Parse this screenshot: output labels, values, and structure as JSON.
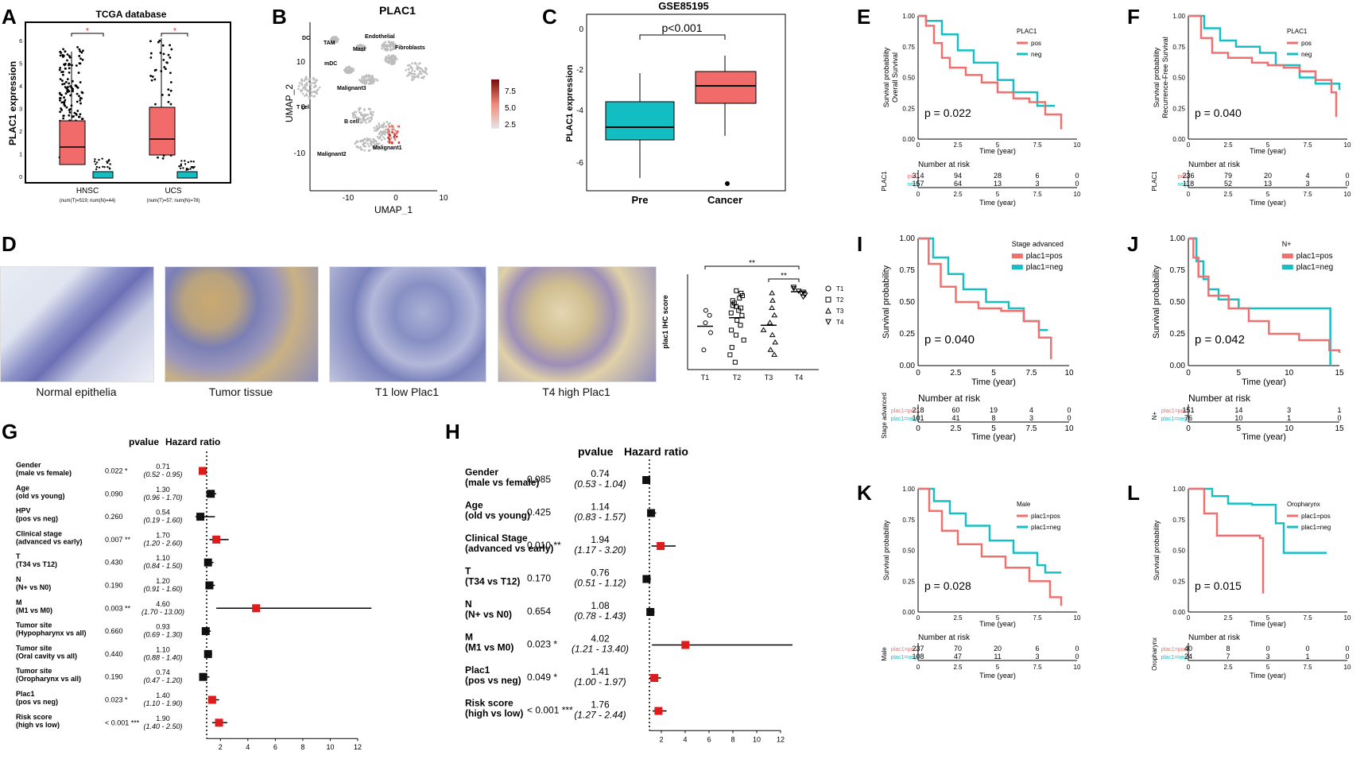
{
  "figure": {
    "panel_labels": [
      "A",
      "B",
      "C",
      "D",
      "E",
      "F",
      "G",
      "H",
      "I",
      "J",
      "K",
      "L"
    ],
    "colors": {
      "pos": "#f07070",
      "neg": "#17bfc4",
      "box_red": "#f26b6b",
      "box_teal": "#13bec2",
      "forest_red": "#e01b1b",
      "forest_black": "#111111"
    }
  },
  "panelA": {
    "title": "TCGA database",
    "ylabel": "PLAC1 expression",
    "groups": [
      {
        "name": "HNSC",
        "note": "(num(T)=519; num(N)=44)"
      },
      {
        "name": "UCS",
        "note": "(num(T)=57; num(N)=78)"
      }
    ],
    "yticks": [
      "0",
      "1",
      "2",
      "3",
      "4",
      "5",
      "6"
    ],
    "sig_marks": [
      "*",
      "*"
    ]
  },
  "panelB": {
    "title": "PLAC1",
    "xlabel": "UMAP_1",
    "ylabel": "UMAP_2",
    "xticks": [
      "-10",
      "0",
      "10"
    ],
    "yticks": [
      "10",
      "0",
      "-10"
    ],
    "clusters": [
      "DC",
      "TAM",
      "Endothelial",
      "Mast",
      "Fibroblasts",
      "mDC",
      "Malignant3",
      "T cell",
      "B cell",
      "Malignant2",
      "Malignant1"
    ],
    "colorbar": [
      "7.5",
      "5.0",
      "2.5"
    ]
  },
  "panelC": {
    "title": "GSE85195",
    "ylabel": "PLAC1 expression",
    "categories": [
      "Pre",
      "Cancer"
    ],
    "yticks": [
      "0",
      "-2",
      "-4",
      "-6"
    ],
    "pvalue": "p<0.001"
  },
  "panelD": {
    "captions": [
      "Normal epithelia",
      "Tumor tissue",
      "T1 low Plac1",
      "T4 high Plac1"
    ],
    "chart_data": {
      "type": "scatter",
      "categories": [
        "T1",
        "T2",
        "T3",
        "T4"
      ],
      "ylabel": "plac1 IHC score",
      "sig": [
        "**",
        "**"
      ],
      "legend": [
        "T1",
        "T2",
        "T3",
        "T4"
      ]
    }
  },
  "survival": [
    {
      "id": "E",
      "legend_title": "PLAC1",
      "pos_label": "pos",
      "neg_label": "neg",
      "ylabel": "Survival probability\nOverall Survival",
      "xlabel": "Time (year)",
      "pvalue": "p = 0.022",
      "risk_title": "Number at risk",
      "strata_label": "PLAC1",
      "pos_risk": [
        "314",
        "94",
        "28",
        "6",
        "0"
      ],
      "neg_risk": [
        "157",
        "64",
        "13",
        "3",
        "0"
      ],
      "xticks": [
        "0",
        "2.5",
        "5",
        "7.5",
        "10"
      ],
      "yticks": [
        "1.00",
        "0.75",
        "0.50",
        "0.25",
        "0.00"
      ]
    },
    {
      "id": "F",
      "legend_title": "PLAC1",
      "pos_label": "pos",
      "neg_label": "neg",
      "ylabel": "Survival probability\nRecurrence-Free Survival",
      "xlabel": "Time (year)",
      "pvalue": "p = 0.040",
      "risk_title": "Number at risk",
      "strata_label": "PLAC1",
      "pos_risk": [
        "236",
        "79",
        "20",
        "4",
        "0"
      ],
      "neg_risk": [
        "118",
        "52",
        "13",
        "3",
        "0"
      ],
      "xticks": [
        "0",
        "2.5",
        "5",
        "7.5",
        "10"
      ],
      "yticks": [
        "1.00",
        "0.75",
        "0.50",
        "0.25",
        "0.00"
      ]
    },
    {
      "id": "I",
      "legend_title": "Stage advanced",
      "pos_label": "plac1=pos",
      "neg_label": "plac1=neg",
      "ylabel": "Survival probability",
      "xlabel": "Time (year)",
      "pvalue": "p = 0.040",
      "risk_title": "Number at risk",
      "strata_label": "Stage advanced",
      "pos_risk": [
        "218",
        "60",
        "19",
        "4",
        "0"
      ],
      "neg_risk": [
        "101",
        "41",
        "8",
        "3",
        "0"
      ],
      "xticks": [
        "0",
        "2.5",
        "5",
        "7.5",
        "10"
      ],
      "yticks": [
        "1.00",
        "0.75",
        "0.50",
        "0.25",
        "0.00"
      ]
    },
    {
      "id": "J",
      "legend_title": "N+",
      "pos_label": "plac1=pos",
      "neg_label": "plac1=neg",
      "ylabel": "Survival probability",
      "xlabel": "Time (year)",
      "pvalue": "p = 0.042",
      "risk_title": "Number at risk",
      "strata_label": "N+",
      "pos_risk": [
        "151",
        "14",
        "3",
        "1"
      ],
      "neg_risk": [
        "76",
        "10",
        "1",
        "0"
      ],
      "xticks": [
        "0",
        "5",
        "10",
        "15"
      ],
      "yticks": [
        "1.00",
        "0.75",
        "0.50",
        "0.25",
        "0.00"
      ]
    },
    {
      "id": "K",
      "legend_title": "Male",
      "pos_label": "plac1=pos",
      "neg_label": "plac1=neg",
      "ylabel": "Survival probability",
      "xlabel": "Time (year)",
      "pvalue": "p = 0.028",
      "risk_title": "Number at risk",
      "strata_label": "Male",
      "pos_risk": [
        "237",
        "70",
        "20",
        "6",
        "0"
      ],
      "neg_risk": [
        "108",
        "47",
        "11",
        "3",
        "0"
      ],
      "xticks": [
        "0",
        "2.5",
        "5",
        "7.5",
        "10"
      ],
      "yticks": [
        "1.00",
        "0.75",
        "0.50",
        "0.25",
        "0.00"
      ]
    },
    {
      "id": "L",
      "legend_title": "Oropharynx",
      "pos_label": "plac1=pos",
      "neg_label": "plac1=neg",
      "ylabel": "Survival probability",
      "xlabel": "Time (year)",
      "pvalue": "p = 0.015",
      "risk_title": "Number at risk",
      "strata_label": "Oropharynx",
      "pos_risk": [
        "40",
        "8",
        "0",
        "0",
        "0"
      ],
      "neg_risk": [
        "24",
        "7",
        "3",
        "1",
        "0"
      ],
      "xticks": [
        "0",
        "2.5",
        "5",
        "7.5",
        "10"
      ],
      "yticks": [
        "1.00",
        "0.75",
        "0.50",
        "0.25",
        "0.00"
      ]
    }
  ],
  "forestG": {
    "pvalue_header": "pvalue",
    "hr_header": "Hazard ratio",
    "xticks": [
      "2",
      "4",
      "6",
      "8",
      "10",
      "12"
    ],
    "rows": [
      {
        "name": "Gender",
        "sub": "(male vs female)",
        "p": "0.022 *",
        "hr": "0.71",
        "ci": "(0.52 - 0.95)",
        "est": 0.71,
        "lo": 0.52,
        "hi": 0.95,
        "sig": true
      },
      {
        "name": "Age",
        "sub": "(old vs young)",
        "p": "0.090",
        "hr": "1.30",
        "ci": "(0.96 - 1.70)",
        "est": 1.3,
        "lo": 0.96,
        "hi": 1.7,
        "sig": false
      },
      {
        "name": "HPV",
        "sub": "(pos vs neg)",
        "p": "0.260",
        "hr": "0.54",
        "ci": "(0.19 - 1.60)",
        "est": 0.54,
        "lo": 0.19,
        "hi": 1.6,
        "sig": false
      },
      {
        "name": "Clinical stage",
        "sub": "(advanced vs early)",
        "p": "0.007 **",
        "hr": "1.70",
        "ci": "(1.20 - 2.60)",
        "est": 1.7,
        "lo": 1.2,
        "hi": 2.6,
        "sig": true
      },
      {
        "name": "T",
        "sub": "(T34 vs T12)",
        "p": "0.430",
        "hr": "1.10",
        "ci": "(0.84 - 1.50)",
        "est": 1.1,
        "lo": 0.84,
        "hi": 1.5,
        "sig": false
      },
      {
        "name": "N",
        "sub": "(N+ vs N0)",
        "p": "0.190",
        "hr": "1.20",
        "ci": "(0.91 - 1.60)",
        "est": 1.2,
        "lo": 0.91,
        "hi": 1.6,
        "sig": false
      },
      {
        "name": "M",
        "sub": "(M1 vs M0)",
        "p": "0.003 **",
        "hr": "4.60",
        "ci": "(1.70 - 13.00)",
        "est": 4.6,
        "lo": 1.7,
        "hi": 13.0,
        "sig": true
      },
      {
        "name": "Tumor site",
        "sub": "(Hypopharynx vs all)",
        "p": "0.660",
        "hr": "0.93",
        "ci": "(0.69 - 1.30)",
        "est": 0.93,
        "lo": 0.69,
        "hi": 1.3,
        "sig": false
      },
      {
        "name": "Tumor site",
        "sub": "(Oral cavity vs all)",
        "p": "0.440",
        "hr": "1.10",
        "ci": "(0.88 - 1.40)",
        "est": 1.1,
        "lo": 0.88,
        "hi": 1.4,
        "sig": false
      },
      {
        "name": "Tumor site",
        "sub": "(Oropharynx vs all)",
        "p": "0.190",
        "hr": "0.74",
        "ci": "(0.47 - 1.20)",
        "est": 0.74,
        "lo": 0.47,
        "hi": 1.2,
        "sig": false
      },
      {
        "name": "Plac1",
        "sub": "(pos vs neg)",
        "p": "0.023 *",
        "hr": "1.40",
        "ci": "(1.10 - 1.90)",
        "est": 1.4,
        "lo": 1.1,
        "hi": 1.9,
        "sig": true
      },
      {
        "name": "Risk score",
        "sub": "(high vs low)",
        "p": "< 0.001 ***",
        "hr": "1.90",
        "ci": "(1.40 - 2.50)",
        "est": 1.9,
        "lo": 1.4,
        "hi": 2.5,
        "sig": true
      }
    ]
  },
  "forestH": {
    "pvalue_header": "pvalue",
    "hr_header": "Hazard ratio",
    "xticks": [
      "2",
      "4",
      "6",
      "8",
      "10",
      "12"
    ],
    "rows": [
      {
        "name": "Gender",
        "sub": "(male vs female)",
        "p": "0.085",
        "hr": "0.74",
        "ci": "(0.53 - 1.04)",
        "est": 0.74,
        "lo": 0.53,
        "hi": 1.04,
        "sig": false
      },
      {
        "name": "Age",
        "sub": "(old vs young)",
        "p": "0.425",
        "hr": "1.14",
        "ci": "(0.83 - 1.57)",
        "est": 1.14,
        "lo": 0.83,
        "hi": 1.57,
        "sig": false
      },
      {
        "name": "Clinical Stage",
        "sub": "(advanced vs early)",
        "p": "0.010 **",
        "hr": "1.94",
        "ci": "(1.17 - 3.20)",
        "est": 1.94,
        "lo": 1.17,
        "hi": 3.2,
        "sig": true
      },
      {
        "name": "T",
        "sub": "(T34 vs T12)",
        "p": "0.170",
        "hr": "0.76",
        "ci": "(0.51 - 1.12)",
        "est": 0.76,
        "lo": 0.51,
        "hi": 1.12,
        "sig": false
      },
      {
        "name": "N",
        "sub": "(N+ vs N0)",
        "p": "0.654",
        "hr": "1.08",
        "ci": "(0.78 - 1.43)",
        "est": 1.08,
        "lo": 0.78,
        "hi": 1.43,
        "sig": false
      },
      {
        "name": "M",
        "sub": "(M1 vs M0)",
        "p": "0.023 *",
        "hr": "4.02",
        "ci": "(1.21 - 13.40)",
        "est": 4.02,
        "lo": 1.21,
        "hi": 13.4,
        "sig": true
      },
      {
        "name": "Plac1",
        "sub": "(pos vs neg)",
        "p": "0.049 *",
        "hr": "1.41",
        "ci": "(1.00 - 1.97)",
        "est": 1.41,
        "lo": 1.0,
        "hi": 1.97,
        "sig": true
      },
      {
        "name": "Risk score",
        "sub": "(high vs low)",
        "p": "< 0.001 ***",
        "hr": "1.76",
        "ci": "(1.27 - 2.44)",
        "est": 1.76,
        "lo": 1.27,
        "hi": 2.44,
        "sig": true
      }
    ]
  }
}
